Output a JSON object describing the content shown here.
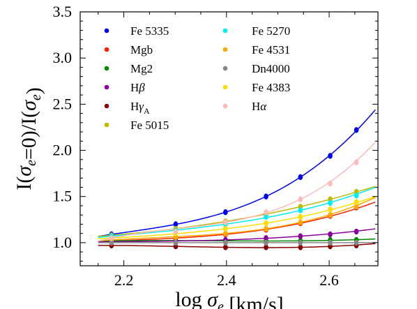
{
  "chart_data": {
    "type": "scatter",
    "title": "",
    "xlabel": "log σe [km/s]",
    "ylabel": "I(σe=0)/I(σe)",
    "xlim": [
      2.115,
      2.695
    ],
    "ylim": [
      0.75,
      3.5
    ],
    "xticks": [
      2.2,
      2.4,
      2.6
    ],
    "yticks": [
      1.0,
      1.5,
      2.0,
      2.5,
      3.0,
      3.5
    ],
    "xtick_labels": [
      "2.2",
      "2.4",
      "2.6"
    ],
    "ytick_labels": [
      "1.0",
      "1.5",
      "2.0",
      "2.5",
      "3.0",
      "3.5"
    ],
    "grid": false,
    "legend_position": "top-left",
    "x": [
      2.176,
      2.301,
      2.398,
      2.477,
      2.544,
      2.602,
      2.653
    ],
    "series": [
      {
        "name": "Fe 5335",
        "color": "#0000ee",
        "values": [
          1.09,
          1.2,
          1.33,
          1.5,
          1.71,
          1.94,
          2.22
        ],
        "curve_end": 2.44
      },
      {
        "name": "Mgb",
        "color": "#ff2000",
        "values": [
          1.02,
          1.05,
          1.09,
          1.14,
          1.21,
          1.29,
          1.38
        ],
        "curve_end": 1.44
      },
      {
        "name": "Mg2",
        "color": "#008800",
        "values": [
          1.02,
          1.02,
          1.02,
          1.02,
          1.02,
          1.03,
          1.03
        ],
        "curve_end": 1.04
      },
      {
        "name": "Hβ",
        "color": "#880099",
        "values": [
          1.01,
          1.02,
          1.03,
          1.05,
          1.07,
          1.09,
          1.12
        ],
        "curve_end": 1.15
      },
      {
        "name": "Hγ_A",
        "color": "#880000",
        "values": [
          0.97,
          0.96,
          0.95,
          0.95,
          0.95,
          0.96,
          0.97
        ],
        "curve_end": 0.99
      },
      {
        "name": "Fe 5015",
        "color": "#bbbb00",
        "values": [
          1.08,
          1.15,
          1.23,
          1.31,
          1.39,
          1.47,
          1.55
        ],
        "curve_end": 1.61
      },
      {
        "name": "Fe 5270",
        "color": "#00eeee",
        "values": [
          1.07,
          1.13,
          1.2,
          1.28,
          1.35,
          1.43,
          1.51
        ],
        "curve_end": 1.6
      },
      {
        "name": "Fe 4531",
        "color": "#ffaa00",
        "values": [
          1.03,
          1.06,
          1.1,
          1.15,
          1.22,
          1.3,
          1.39
        ],
        "curve_end": 1.49
      },
      {
        "name": "Dn4000",
        "color": "#888888",
        "values": [
          1.0,
          1.0,
          1.0,
          1.0,
          1.0,
          1.0,
          1.0
        ],
        "curve_end": 1.0
      },
      {
        "name": "Fe 4383",
        "color": "#ffdd00",
        "values": [
          1.05,
          1.1,
          1.15,
          1.21,
          1.28,
          1.36,
          1.44
        ],
        "curve_end": 1.5
      },
      {
        "name": "Hα",
        "color": "#ffbbbb",
        "values": [
          1.05,
          1.12,
          1.22,
          1.33,
          1.47,
          1.64,
          1.87
        ],
        "curve_end": 2.09
      }
    ],
    "curve_x_start": 2.15,
    "curve_x_end": 2.69
  }
}
